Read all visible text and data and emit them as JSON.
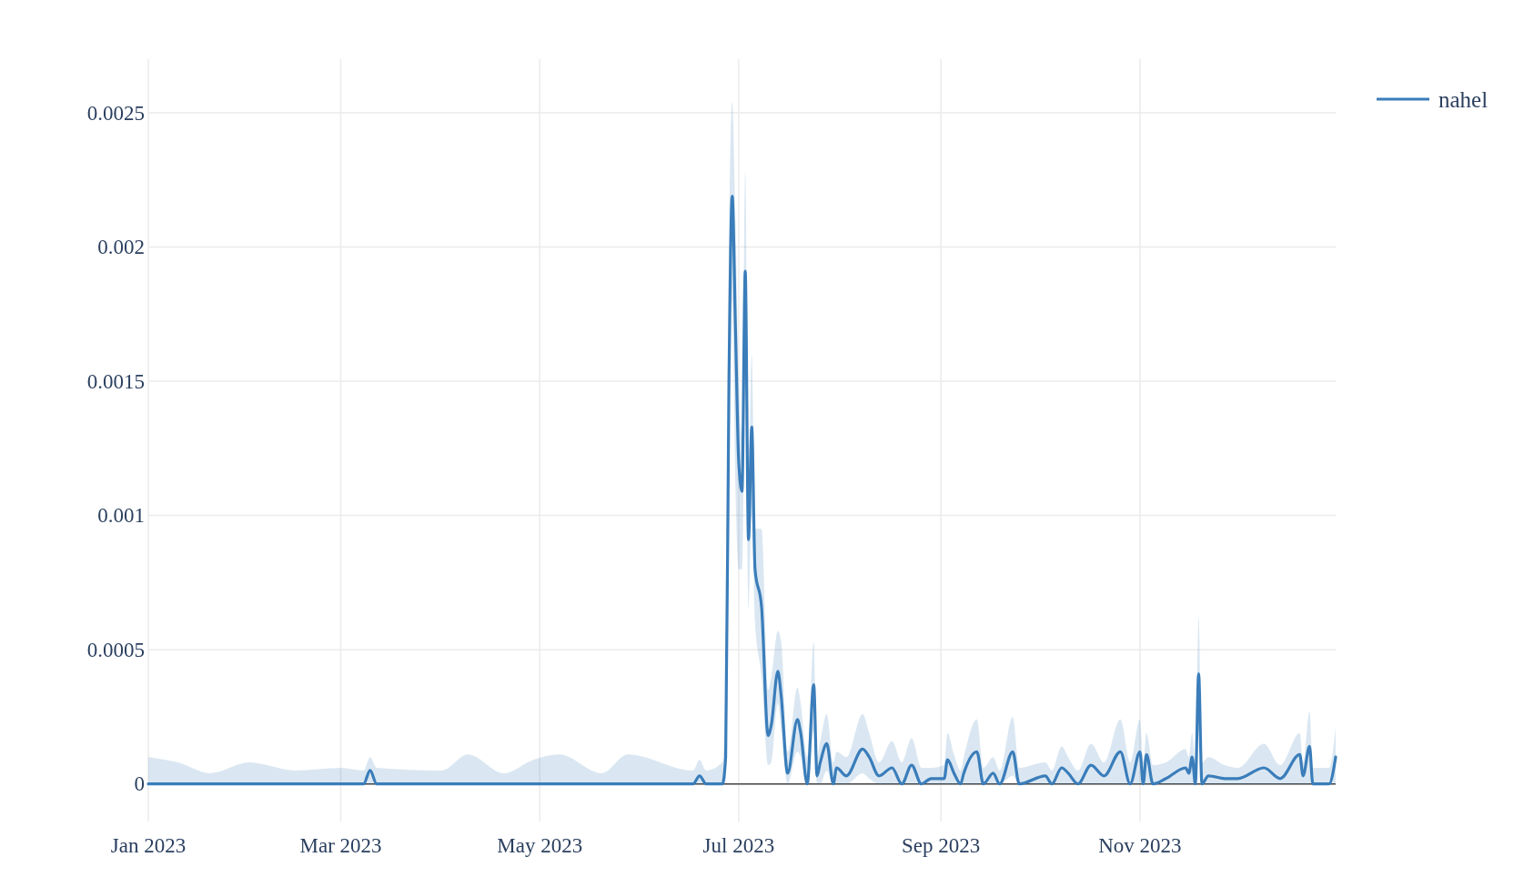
{
  "chart_data": {
    "type": "line",
    "xlim": [
      "2023-01-01",
      "2023-12-31"
    ],
    "ylim": [
      -0.00014,
      0.0027
    ],
    "xticks": [
      {
        "value": "2023-01-01",
        "label": "Jan 2023"
      },
      {
        "value": "2023-03-01",
        "label": "Mar 2023"
      },
      {
        "value": "2023-05-01",
        "label": "May 2023"
      },
      {
        "value": "2023-07-01",
        "label": "Jul 2023"
      },
      {
        "value": "2023-09-01",
        "label": "Sep 2023"
      },
      {
        "value": "2023-11-01",
        "label": "Nov 2023"
      }
    ],
    "yticks": [
      0,
      0.0005,
      0.001,
      0.0015,
      0.002,
      0.0025
    ],
    "grid": true,
    "legend": "top right",
    "marker": "none",
    "line_style": "solid",
    "series": [
      {
        "name": "nahel",
        "color": "#3a7dba",
        "x": [
          "2023-01-01",
          "2023-01-10",
          "2023-01-20",
          "2023-02-01",
          "2023-02-15",
          "2023-03-01",
          "2023-03-08",
          "2023-03-10",
          "2023-03-12",
          "2023-04-01",
          "2023-04-09",
          "2023-04-20",
          "2023-04-29",
          "2023-05-07",
          "2023-05-20",
          "2023-05-28",
          "2023-06-17",
          "2023-06-19",
          "2023-06-21",
          "2023-06-26",
          "2023-06-27",
          "2023-06-28",
          "2023-06-29",
          "2023-06-30",
          "2023-07-01",
          "2023-07-02",
          "2023-07-03",
          "2023-07-04",
          "2023-07-05",
          "2023-07-06",
          "2023-07-08",
          "2023-07-10",
          "2023-07-11",
          "2023-07-13",
          "2023-07-14",
          "2023-07-16",
          "2023-07-19",
          "2023-07-20",
          "2023-07-22",
          "2023-07-24",
          "2023-07-25",
          "2023-07-26",
          "2023-07-28",
          "2023-07-30",
          "2023-07-31",
          "2023-08-03",
          "2023-08-08",
          "2023-08-10",
          "2023-08-13",
          "2023-08-17",
          "2023-08-20",
          "2023-08-23",
          "2023-08-26",
          "2023-08-29",
          "2023-09-02",
          "2023-09-03",
          "2023-09-05",
          "2023-09-07",
          "2023-09-08",
          "2023-09-12",
          "2023-09-14",
          "2023-09-17",
          "2023-09-19",
          "2023-09-23",
          "2023-09-25",
          "2023-10-03",
          "2023-10-05",
          "2023-10-08",
          "2023-10-10",
          "2023-10-13",
          "2023-10-17",
          "2023-10-21",
          "2023-10-26",
          "2023-10-29",
          "2023-11-01",
          "2023-11-02",
          "2023-11-03",
          "2023-11-05",
          "2023-11-09",
          "2023-11-15",
          "2023-11-16",
          "2023-11-17",
          "2023-11-18",
          "2023-11-19",
          "2023-11-20",
          "2023-11-22",
          "2023-11-27",
          "2023-12-01",
          "2023-12-09",
          "2023-12-14",
          "2023-12-20",
          "2023-12-21",
          "2023-12-23",
          "2023-12-24",
          "2023-12-29",
          "2023-12-31"
        ],
        "values": [
          0,
          0,
          0,
          0,
          0,
          0,
          0,
          5e-05,
          0,
          0,
          0,
          0,
          0,
          0,
          0,
          0,
          0,
          3e-05,
          0,
          0,
          0.0001,
          0.0015,
          0.00219,
          0.0017,
          0.0012,
          0.00109,
          0.00191,
          0.00091,
          0.00133,
          0.0008,
          0.00066,
          0.00018,
          0.00022,
          0.00042,
          0.00033,
          4e-05,
          0.00024,
          0.00019,
          0,
          0.00037,
          3e-05,
          8e-05,
          0.00015,
          0,
          6e-05,
          3e-05,
          0.00013,
          0.0001,
          3e-05,
          6e-05,
          0,
          7e-05,
          0,
          2e-05,
          2e-05,
          9e-05,
          4e-05,
          0,
          4e-05,
          0.00012,
          0,
          4e-05,
          0,
          0.00012,
          0,
          3e-05,
          0,
          6e-05,
          4e-05,
          0,
          7e-05,
          3e-05,
          0.00012,
          0,
          0.00012,
          0,
          0.00011,
          0,
          2e-05,
          6e-05,
          4e-05,
          0.0001,
          0,
          0.00041,
          0,
          3e-05,
          2e-05,
          2e-05,
          6e-05,
          2e-05,
          0.00011,
          3e-05,
          0.00014,
          0,
          0,
          0.0001
        ],
        "upper": [
          0.0001,
          8e-05,
          4e-05,
          8e-05,
          5e-05,
          6e-05,
          5e-05,
          0.0001,
          6e-05,
          5e-05,
          0.00011,
          4e-05,
          9e-05,
          0.00011,
          4e-05,
          0.00011,
          5e-05,
          9e-05,
          5e-05,
          8e-05,
          0.0004,
          0.002,
          0.00254,
          0.0021,
          0.0015,
          0.0013,
          0.00228,
          0.0011,
          0.0016,
          0.00095,
          0.00095,
          0.00035,
          0.0004,
          0.00057,
          0.00053,
          0.00012,
          0.00036,
          0.0003,
          0.0001,
          0.00053,
          0.0001,
          0.00016,
          0.00026,
          8e-05,
          0.00012,
          0.0001,
          0.00026,
          0.00019,
          8e-05,
          0.00016,
          8e-05,
          0.00017,
          6e-05,
          6e-05,
          7e-05,
          0.00019,
          0.00011,
          5e-05,
          0.0001,
          0.00024,
          6e-05,
          0.0001,
          5e-05,
          0.00025,
          6e-05,
          8e-05,
          5e-05,
          0.00014,
          0.0001,
          5e-05,
          0.00015,
          8e-05,
          0.00024,
          8e-05,
          0.00024,
          8e-05,
          0.00019,
          7e-05,
          8e-05,
          0.00013,
          0.0001,
          0.00019,
          7e-05,
          0.00062,
          8e-05,
          0.0001,
          7e-05,
          6e-05,
          0.00015,
          7e-05,
          0.00019,
          8e-05,
          0.00027,
          6e-05,
          6e-05,
          0.00021
        ],
        "lower": [
          0,
          0,
          0,
          0,
          0,
          0,
          0,
          0,
          0,
          0,
          0,
          0,
          0,
          0,
          0,
          0,
          0,
          0,
          0,
          0,
          0,
          0.0009,
          0.0018,
          0.0011,
          0.0008,
          0.0008,
          0.0015,
          0.00065,
          0.001,
          0.0006,
          0.0004,
          7e-05,
          8e-05,
          0.0003,
          0.0002,
          0,
          0.00012,
          0.0001,
          0,
          0.0002,
          0,
          0,
          5e-05,
          0,
          0,
          0,
          4e-05,
          2e-05,
          0,
          0,
          0,
          0,
          0,
          0,
          0,
          0,
          0,
          0,
          0,
          0,
          0,
          0,
          0,
          3e-05,
          0,
          0,
          0,
          0,
          0,
          0,
          0,
          0,
          0,
          0,
          0,
          0,
          0,
          0,
          0,
          0,
          0,
          0,
          0,
          0.0002,
          0,
          0,
          0,
          0,
          0,
          0,
          0,
          0,
          0,
          0,
          0,
          0
        ]
      }
    ]
  }
}
